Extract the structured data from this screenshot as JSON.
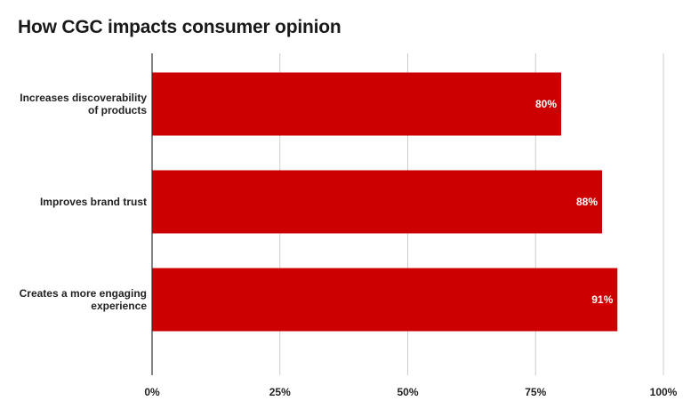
{
  "chart_data": {
    "type": "bar",
    "orientation": "horizontal",
    "title": "How CGC impacts consumer opinion",
    "categories": [
      [
        "Increases discoverability",
        "of products"
      ],
      [
        "Improves brand trust"
      ],
      [
        "Creates a more engaging",
        "experience"
      ]
    ],
    "series": [
      {
        "values": [
          80,
          88,
          91
        ],
        "color": "#cc0000"
      }
    ],
    "data_labels": [
      "80%",
      "88%",
      "91%"
    ],
    "xlim": [
      0,
      100
    ],
    "x_ticks": [
      0,
      25,
      50,
      75,
      100
    ],
    "x_tick_labels": [
      "0%",
      "25%",
      "50%",
      "75%",
      "100%"
    ],
    "grid": true,
    "legend": "none"
  }
}
